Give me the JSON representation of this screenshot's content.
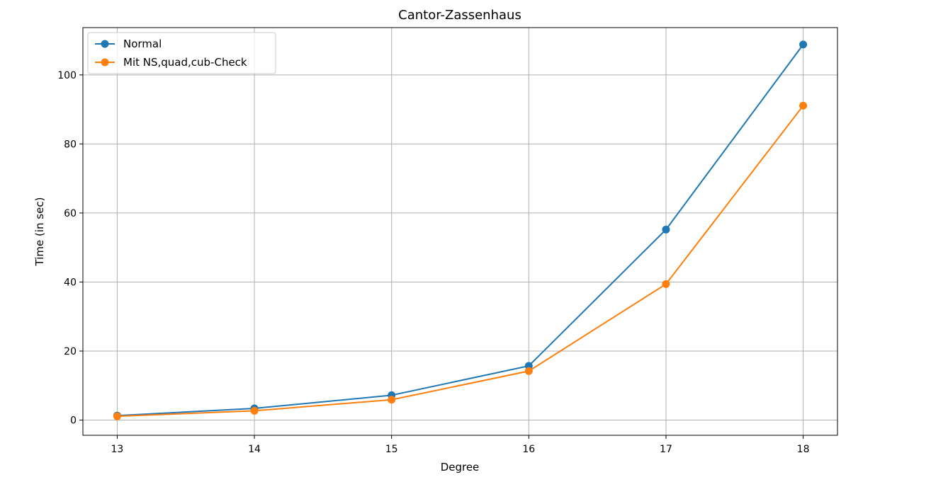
{
  "chart_data": {
    "type": "line",
    "title": "Cantor-Zassenhaus",
    "xlabel": "Degree",
    "ylabel": "Time (in sec)",
    "x": [
      13,
      14,
      15,
      16,
      17,
      18
    ],
    "xlim": [
      12.75,
      18.25
    ],
    "ylim": [
      -4.4,
      113.7
    ],
    "xticks": [
      13,
      14,
      15,
      16,
      17,
      18
    ],
    "yticks": [
      0,
      20,
      40,
      60,
      80,
      100
    ],
    "grid": true,
    "legend_position": "top-left",
    "series": [
      {
        "name": "Normal",
        "color": "#1f77b4",
        "marker": "circle",
        "values": [
          1.3,
          3.4,
          7.2,
          15.7,
          55.2,
          108.8
        ]
      },
      {
        "name": "Mit NS,quad,cub-Check",
        "color": "#ff7f0e",
        "marker": "circle",
        "values": [
          1.1,
          2.7,
          5.9,
          14.2,
          39.4,
          91.1
        ]
      }
    ]
  }
}
